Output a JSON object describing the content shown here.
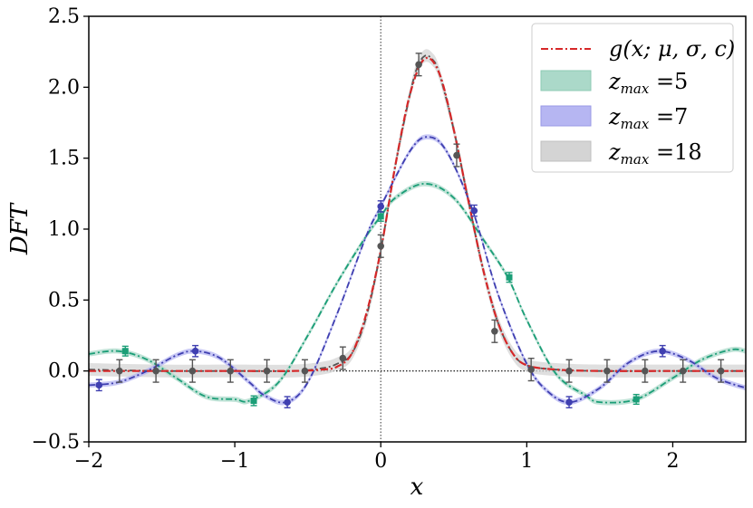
{
  "chart_data": {
    "type": "line",
    "title": "",
    "xlabel": "x",
    "ylabel": "DFT",
    "xlim": [
      -2,
      2.5
    ],
    "ylim": [
      -0.5,
      2.5
    ],
    "xticks": [
      -2,
      -1,
      0,
      1,
      2
    ],
    "xtick_labels": [
      "−2",
      "−1",
      "0",
      "1",
      "2"
    ],
    "yticks": [
      -0.5,
      0.0,
      0.5,
      1.0,
      1.5,
      2.0,
      2.5
    ],
    "ytick_labels": [
      "−0.5",
      "0.0",
      "0.5",
      "1.0",
      "1.5",
      "2.0",
      "2.5"
    ],
    "grid": false,
    "legend_position": "upper-right",
    "reference_lines": {
      "vertical_x": 0,
      "horizontal_y": 0
    },
    "model": {
      "name": "g(x; μ, σ, c)",
      "color": "#d62728",
      "x": [
        -2.0,
        -1.5,
        -1.0,
        -0.6,
        -0.4,
        -0.3,
        -0.2,
        -0.1,
        0.0,
        0.1,
        0.2,
        0.3,
        0.4,
        0.5,
        0.6,
        0.7,
        0.8,
        0.9,
        1.0,
        1.2,
        1.5,
        2.0,
        2.5
      ],
      "y": [
        0.0,
        0.0,
        0.0,
        0.0,
        0.01,
        0.03,
        0.12,
        0.4,
        0.85,
        1.45,
        1.95,
        2.2,
        2.1,
        1.7,
        1.2,
        0.72,
        0.35,
        0.13,
        0.04,
        0.01,
        0.0,
        0.0,
        0.0
      ]
    },
    "series": [
      {
        "name": "z_max = 5",
        "legend_label": "=5",
        "color": "#1b9e77",
        "band_color": "#abd9c9",
        "band_halfwidth": 0.018,
        "x": [
          -2.0,
          -1.8,
          -1.6,
          -1.4,
          -1.2,
          -1.0,
          -0.9,
          -0.7,
          -0.5,
          -0.3,
          -0.1,
          0.0,
          0.1,
          0.3,
          0.5,
          0.7,
          0.87,
          1.0,
          1.2,
          1.4,
          1.5,
          1.75,
          2.0,
          2.2,
          2.4,
          2.5
        ],
        "y": [
          0.12,
          0.14,
          0.08,
          -0.05,
          -0.18,
          -0.2,
          -0.21,
          -0.08,
          0.25,
          0.62,
          0.95,
          1.09,
          1.22,
          1.32,
          1.22,
          0.93,
          0.66,
          0.36,
          -0.02,
          -0.17,
          -0.22,
          -0.2,
          -0.05,
          0.08,
          0.15,
          0.14
        ]
      },
      {
        "name": "z_max = 7",
        "legend_label": "=7",
        "color": "#3f3fb0",
        "band_color": "#b6b6f2",
        "band_halfwidth": 0.018,
        "x": [
          -2.0,
          -1.8,
          -1.6,
          -1.4,
          -1.27,
          -1.1,
          -0.9,
          -0.8,
          -0.65,
          -0.5,
          -0.3,
          -0.1,
          0.0,
          0.2,
          0.32,
          0.45,
          0.63,
          0.8,
          1.0,
          1.15,
          1.3,
          1.5,
          1.7,
          1.9,
          2.1,
          2.3,
          2.5
        ],
        "y": [
          -0.1,
          -0.08,
          0.0,
          0.11,
          0.14,
          0.09,
          -0.08,
          -0.17,
          -0.22,
          -0.08,
          0.4,
          0.95,
          1.16,
          1.55,
          1.65,
          1.55,
          1.13,
          0.55,
          0.05,
          -0.15,
          -0.22,
          -0.12,
          0.06,
          0.14,
          0.08,
          -0.05,
          -0.12
        ]
      },
      {
        "name": "z_max = 18",
        "legend_label": "=18",
        "color": "#555555",
        "band_color": "#d4d4d4",
        "band_halfwidth": 0.045,
        "x": [
          -2.0,
          -1.5,
          -1.0,
          -0.6,
          -0.4,
          -0.3,
          -0.2,
          -0.1,
          0.0,
          0.1,
          0.2,
          0.25,
          0.3,
          0.35,
          0.4,
          0.5,
          0.6,
          0.7,
          0.8,
          0.9,
          1.0,
          1.2,
          1.5,
          2.0,
          2.5
        ],
        "y": [
          0.01,
          0.0,
          0.0,
          0.0,
          0.02,
          0.05,
          0.12,
          0.38,
          0.85,
          1.45,
          1.95,
          2.14,
          2.22,
          2.2,
          2.1,
          1.7,
          1.2,
          0.72,
          0.35,
          0.13,
          0.04,
          0.01,
          0.0,
          0.0,
          0.0
        ]
      }
    ],
    "markers": [
      {
        "series": "z_max = 5",
        "shape": "square",
        "points": [
          [
            -1.75,
            0.14
          ],
          [
            -0.87,
            -0.21
          ],
          [
            0.0,
            1.09
          ],
          [
            0.88,
            0.66
          ],
          [
            1.75,
            -0.2
          ]
        ],
        "error": 0.015
      },
      {
        "series": "z_max = 7",
        "shape": "circle",
        "points": [
          [
            -1.93,
            -0.1
          ],
          [
            -1.27,
            0.14
          ],
          [
            -0.64,
            -0.22
          ],
          [
            0.0,
            1.16
          ],
          [
            0.64,
            1.13
          ],
          [
            1.29,
            -0.22
          ],
          [
            1.93,
            0.14
          ]
        ],
        "error": 0.02
      },
      {
        "series": "z_max = 18",
        "shape": "circle",
        "points": [
          [
            -1.79,
            0.0
          ],
          [
            -1.54,
            0.0
          ],
          [
            -1.29,
            0.0
          ],
          [
            -1.03,
            0.0
          ],
          [
            -0.78,
            0.0
          ],
          [
            -0.52,
            0.0
          ],
          [
            -0.26,
            0.09
          ],
          [
            0.0,
            0.88
          ],
          [
            0.26,
            2.16
          ],
          [
            0.52,
            1.52
          ],
          [
            0.78,
            0.28
          ],
          [
            1.03,
            0.01
          ],
          [
            1.29,
            0.0
          ],
          [
            1.55,
            0.0
          ],
          [
            1.81,
            0.0
          ],
          [
            2.07,
            0.0
          ],
          [
            2.33,
            0.0
          ]
        ],
        "error": 0.06
      }
    ]
  }
}
